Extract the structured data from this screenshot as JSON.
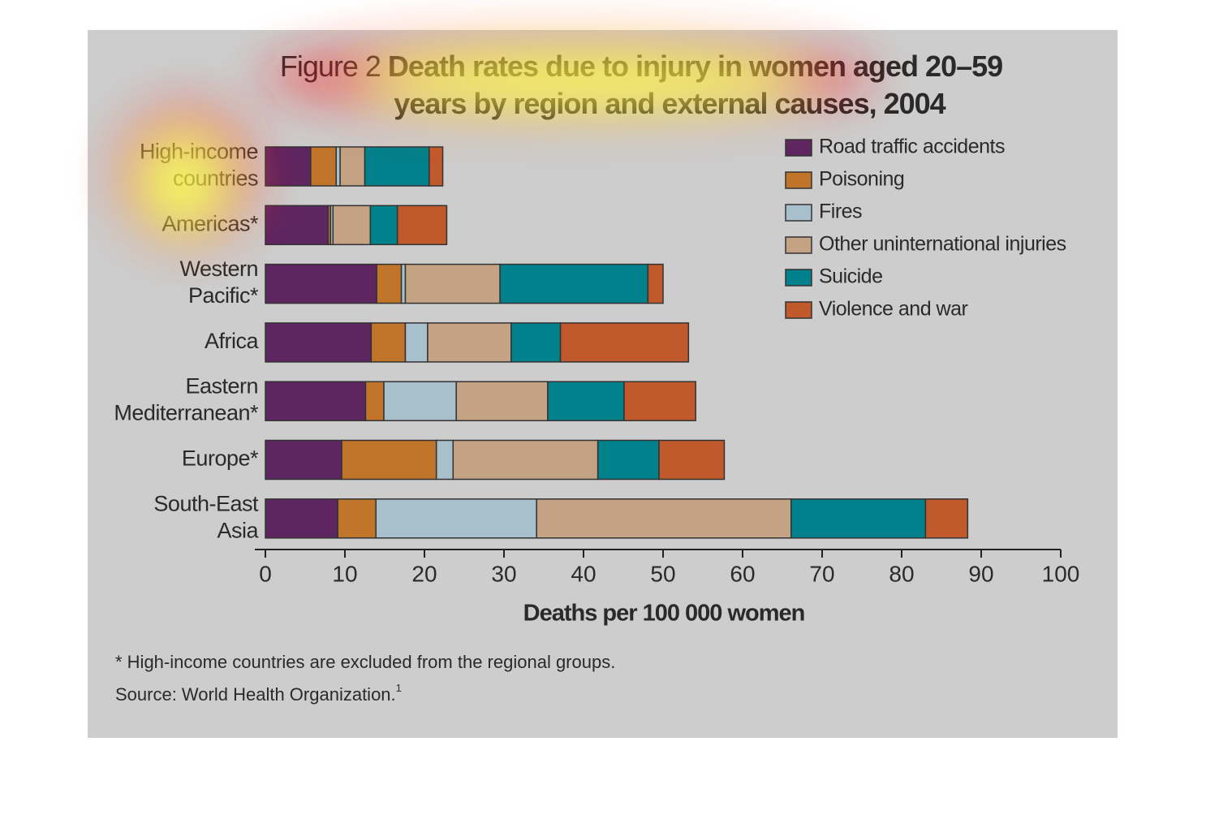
{
  "chart_data": {
    "type": "stacked-bar-horizontal",
    "figure_label": "Figure 2",
    "title": "Death rates due to injury in women aged 20–59 years by region and external causes, 2004",
    "categories": [
      [
        "High-income",
        "countries"
      ],
      [
        "Americas*"
      ],
      [
        "Western",
        "Pacific*"
      ],
      [
        "Africa"
      ],
      [
        "Eastern",
        "Mediterranean*"
      ],
      [
        "Europe*"
      ],
      [
        "South-East",
        "Asia"
      ]
    ],
    "series": [
      {
        "name": "Road traffic accidents",
        "color": "#5e2661",
        "values": [
          5.7,
          7.9,
          14.0,
          13.3,
          12.6,
          9.6,
          9.1
        ]
      },
      {
        "name": "Poisoning",
        "color": "#c0752a",
        "values": [
          3.2,
          0.3,
          3.1,
          4.3,
          2.3,
          11.9,
          4.8
        ]
      },
      {
        "name": "Fires",
        "color": "#a8bfcc",
        "values": [
          0.5,
          0.3,
          0.5,
          2.8,
          9.1,
          2.1,
          20.2
        ]
      },
      {
        "name": "Other uninternational injuries",
        "color": "#c4a284",
        "values": [
          3.1,
          4.7,
          11.9,
          10.5,
          11.5,
          18.2,
          32.0
        ]
      },
      {
        "name": "Suicide",
        "color": "#00818b",
        "values": [
          8.1,
          3.4,
          18.6,
          6.2,
          9.6,
          7.7,
          16.9
        ]
      },
      {
        "name": "Violence and war",
        "color": "#c05a2c",
        "values": [
          1.7,
          6.2,
          1.9,
          16.1,
          9.0,
          8.2,
          5.3
        ]
      }
    ],
    "xlim": [
      0,
      100
    ],
    "xticks": [
      0,
      10,
      20,
      30,
      40,
      50,
      60,
      70,
      80,
      90,
      100
    ],
    "xlabel": "Deaths per 100 000 women",
    "footnote": "* High-income countries are excluded from the regional groups.",
    "source": "Source: World Health Organization.",
    "source_ref": "1"
  }
}
